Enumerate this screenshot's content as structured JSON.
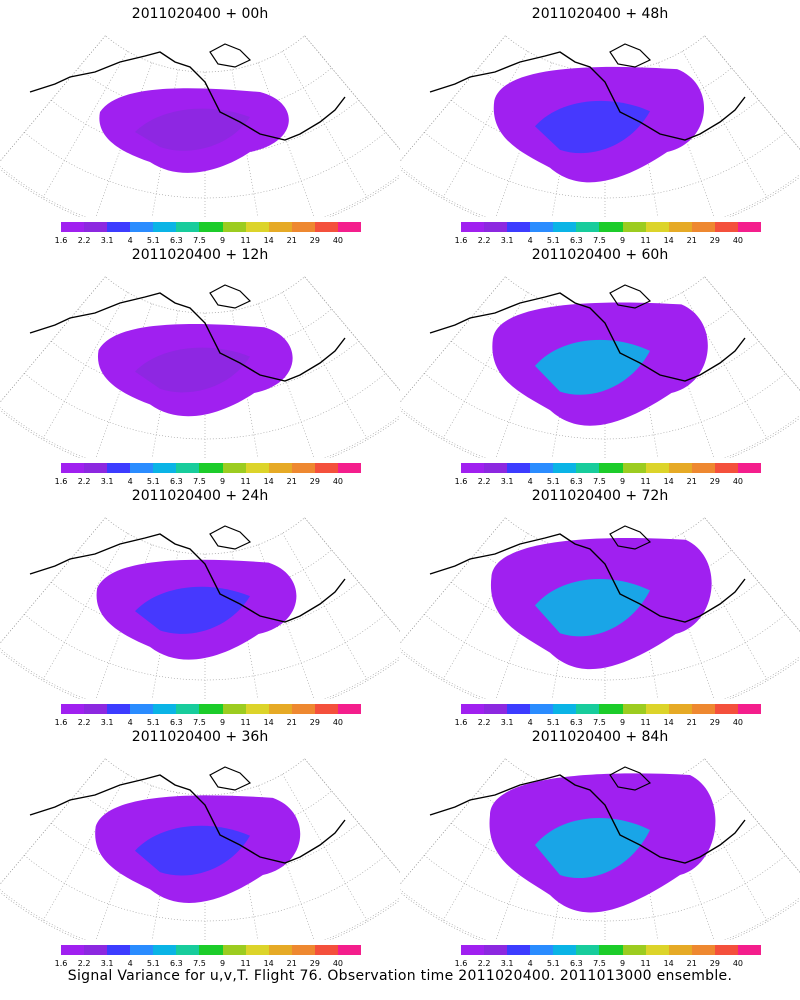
{
  "panels": [
    {
      "title": "2011020400 + 00h",
      "hour": 0
    },
    {
      "title": "2011020400 + 48h",
      "hour": 48
    },
    {
      "title": "2011020400 + 12h",
      "hour": 12
    },
    {
      "title": "2011020400 + 60h",
      "hour": 60
    },
    {
      "title": "2011020400 + 24h",
      "hour": 24
    },
    {
      "title": "2011020400 + 72h",
      "hour": 72
    },
    {
      "title": "2011020400 + 36h",
      "hour": 36
    },
    {
      "title": "2011020400 + 84h",
      "hour": 84
    }
  ],
  "colorbar": {
    "labels": [
      "1.6",
      "2.2",
      "3.1",
      "4",
      "5.1",
      "6.3",
      "7.5",
      "9",
      "11",
      "14",
      "21",
      "29",
      "40"
    ],
    "colors": [
      "#a020f0",
      "#8c28e0",
      "#3c3cff",
      "#2a8cff",
      "#0ab4e6",
      "#18cc9c",
      "#1ccc2a",
      "#9ccc20",
      "#dcd42a",
      "#e6aa26",
      "#ee8830",
      "#f4503c",
      "#f41e8c"
    ]
  },
  "footer": "Signal Variance for u,v,T. Flight 76. Observation time 2011020400. 2011013000 ensemble."
}
